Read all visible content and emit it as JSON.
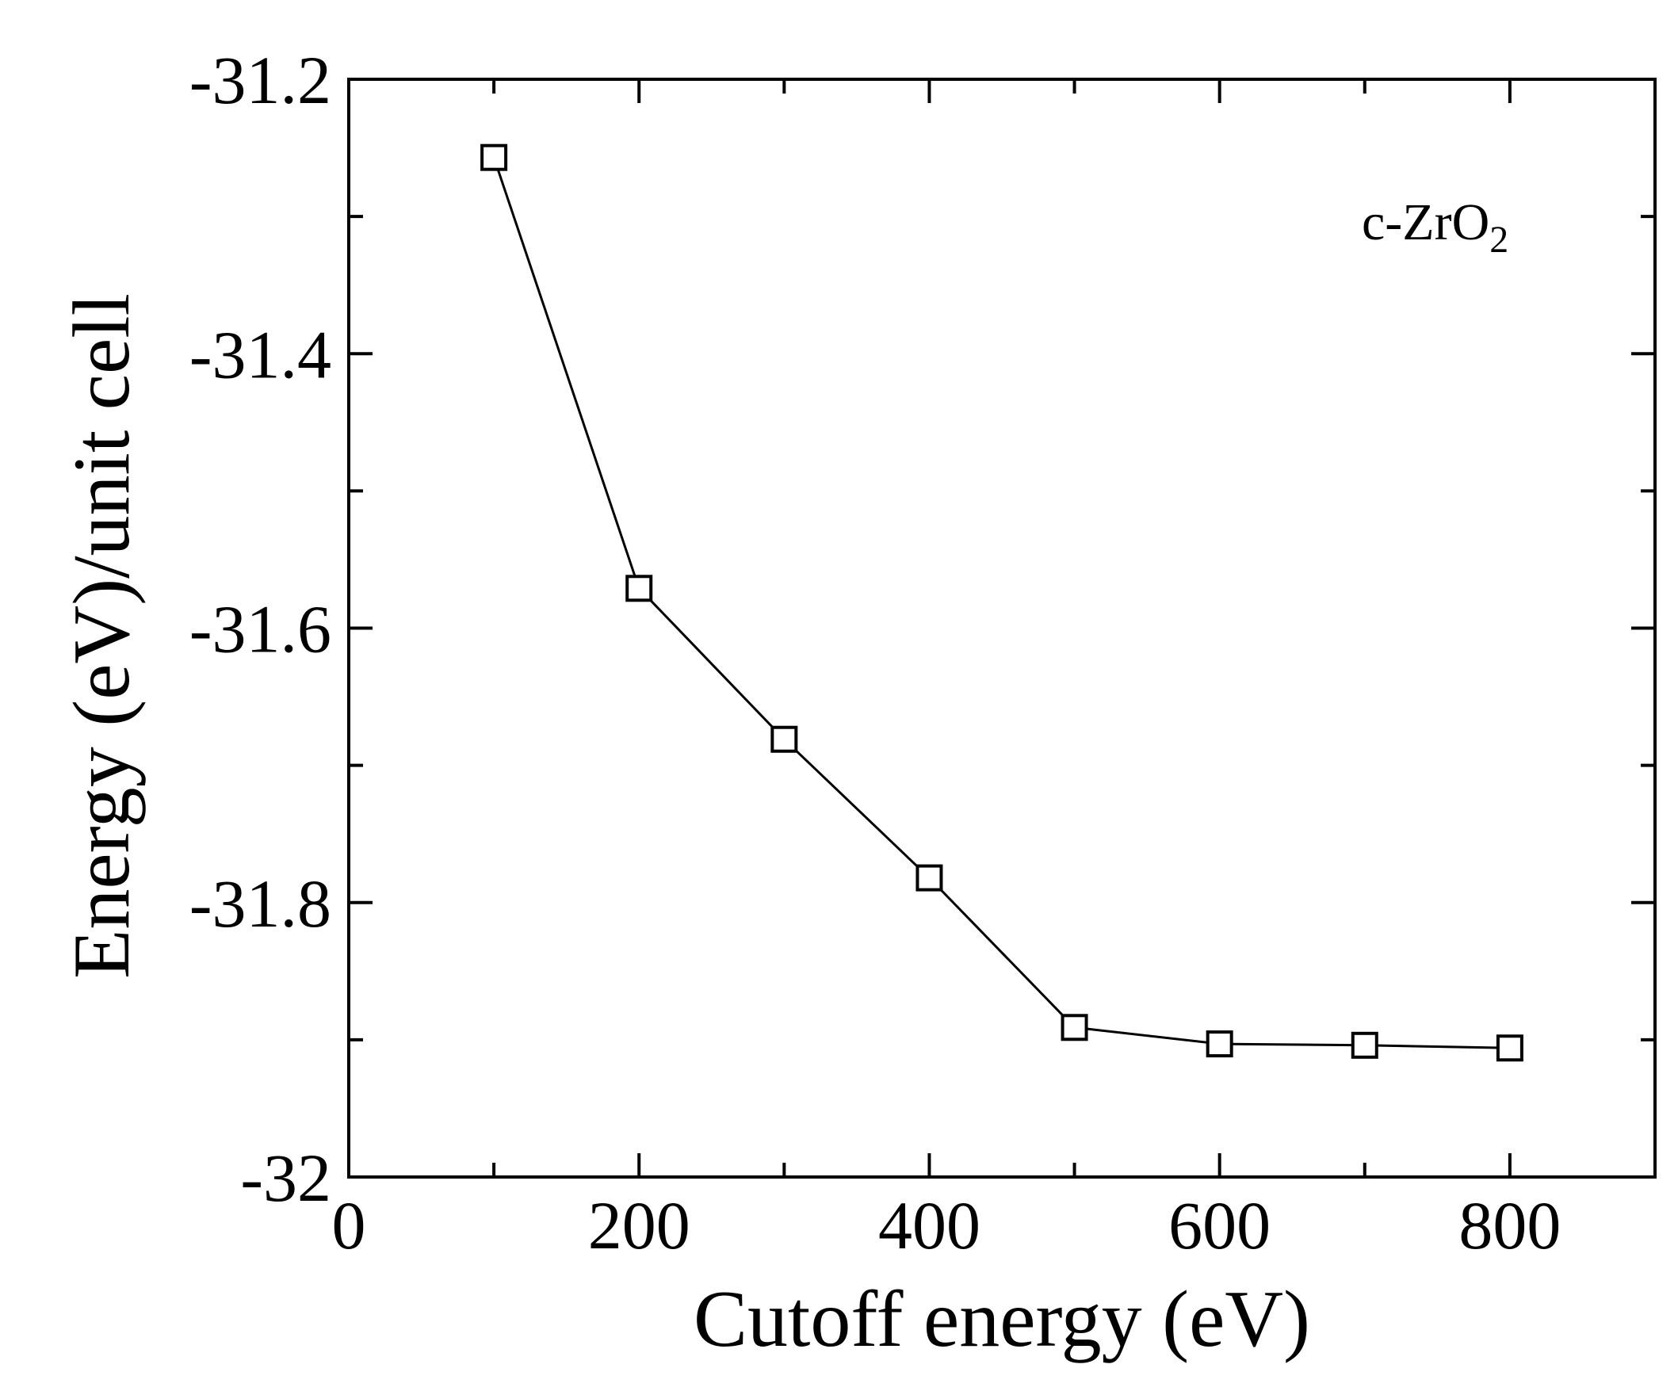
{
  "chart_data": {
    "type": "line",
    "title": "",
    "xlabel": "Cutoff energy (eV)",
    "ylabel": "Energy (eV)/unit cell",
    "xlim": [
      0,
      900
    ],
    "ylim": [
      -32.0,
      -31.2
    ],
    "x_ticks": [
      0,
      200,
      400,
      600,
      800
    ],
    "x_tick_labels": [
      "0",
      "200",
      "400",
      "600",
      "800"
    ],
    "x_minor_ticks": [
      100,
      300,
      500,
      700
    ],
    "y_ticks": [
      -32.0,
      -31.8,
      -31.6,
      -31.4,
      -31.2
    ],
    "y_tick_labels": [
      "-32",
      "-31.8",
      "-31.6",
      "-31.4",
      "-31.2"
    ],
    "y_minor_ticks": [
      -31.9,
      -31.7,
      -31.5,
      -31.3
    ],
    "grid": false,
    "marker": "open-square",
    "series": [
      {
        "x": [
          100,
          200,
          300,
          400,
          500,
          600,
          700,
          800
        ],
        "y": [
          -31.257,
          -31.571,
          -31.681,
          -31.782,
          -31.891,
          -31.903,
          -31.904,
          -31.906
        ]
      }
    ],
    "annotation": {
      "text_main": "c-ZrO",
      "text_subscript": "2"
    },
    "line_color": "#000000"
  }
}
